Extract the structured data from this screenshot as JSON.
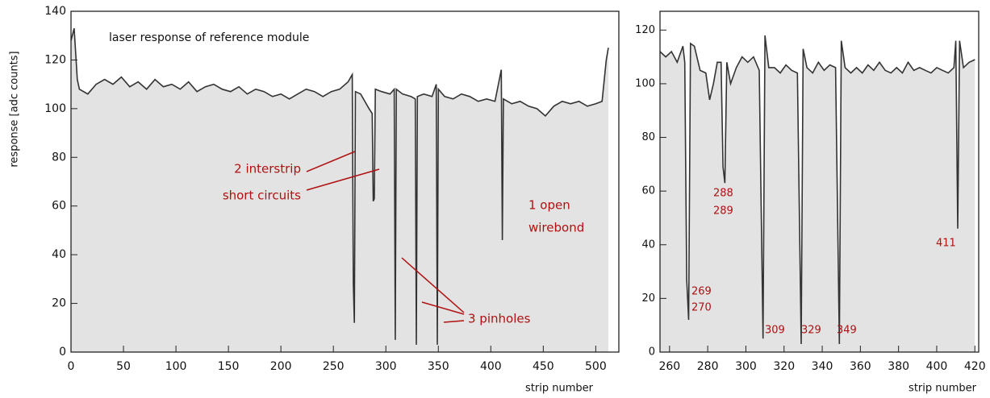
{
  "chart_data": [
    {
      "type": "line",
      "x_label": "strip number",
      "y_label": "response  [adc counts]",
      "xlim": [
        0,
        522
      ],
      "xticks": [
        0,
        50,
        100,
        150,
        200,
        250,
        300,
        350,
        400,
        450,
        500
      ],
      "ylim": [
        0,
        140
      ],
      "yticks": [
        0,
        20,
        40,
        60,
        80,
        100,
        120,
        140
      ],
      "annotations": [
        "laser response of reference module",
        "2 interstrip",
        "short circuits",
        "1 open",
        "wirebond",
        "3 pinholes"
      ],
      "series": [
        {
          "color": "#333333",
          "x": [
            0,
            3,
            6,
            8,
            16,
            24,
            32,
            40,
            48,
            56,
            64,
            72,
            80,
            88,
            96,
            104,
            112,
            120,
            128,
            136,
            144,
            152,
            160,
            168,
            176,
            184,
            192,
            200,
            208,
            216,
            224,
            232,
            240,
            248,
            256,
            264,
            268,
            269,
            270,
            271,
            276,
            284,
            287,
            288,
            289,
            290,
            296,
            304,
            308,
            309,
            310,
            316,
            324,
            328,
            329,
            330,
            336,
            344,
            348,
            349,
            350,
            356,
            364,
            372,
            380,
            388,
            396,
            404,
            410,
            411,
            412,
            420,
            428,
            436,
            444,
            452,
            460,
            468,
            476,
            484,
            492,
            500,
            506,
            510,
            512
          ],
          "values": [
            128,
            133,
            112,
            108,
            106,
            110,
            112,
            110,
            113,
            109,
            111,
            108,
            112,
            109,
            110,
            108,
            111,
            107,
            109,
            110,
            108,
            107,
            109,
            106,
            108,
            107,
            105,
            106,
            104,
            106,
            108,
            107,
            105,
            107,
            108,
            111,
            114,
            28,
            12,
            107,
            106,
            100,
            98,
            62,
            63,
            108,
            107,
            106,
            108,
            5,
            108,
            106,
            105,
            104,
            3,
            105,
            106,
            105,
            110,
            3,
            108,
            105,
            104,
            106,
            105,
            103,
            104,
            103,
            116,
            46,
            104,
            102,
            103,
            101,
            100,
            97,
            101,
            103,
            102,
            103,
            101,
            102,
            103,
            120,
            125
          ]
        }
      ]
    },
    {
      "type": "line",
      "x_label": "strip number",
      "xlim": [
        255,
        422
      ],
      "xticks": [
        260,
        280,
        300,
        320,
        340,
        360,
        380,
        400,
        420
      ],
      "ylim": [
        0,
        127
      ],
      "yticks": [
        0,
        20,
        40,
        60,
        80,
        100,
        120
      ],
      "annotations": [
        "288",
        "289",
        "269",
        "270",
        "309",
        "329",
        "349",
        "411"
      ],
      "series": [
        {
          "color": "#333333",
          "x": [
            255,
            258,
            261,
            264,
            267,
            268,
            269,
            270,
            271,
            273,
            276,
            279,
            281,
            283,
            285,
            287,
            288,
            289,
            290,
            292,
            295,
            298,
            301,
            304,
            307,
            309,
            310,
            312,
            315,
            318,
            321,
            324,
            327,
            329,
            330,
            332,
            335,
            338,
            341,
            344,
            347,
            349,
            350,
            352,
            355,
            358,
            361,
            364,
            367,
            370,
            373,
            376,
            379,
            382,
            385,
            388,
            391,
            394,
            397,
            400,
            403,
            406,
            409,
            410,
            411,
            412,
            414,
            417,
            420
          ],
          "values": [
            112,
            110,
            112,
            108,
            114,
            108,
            27,
            12,
            115,
            114,
            105,
            104,
            94,
            100,
            108,
            108,
            69,
            63,
            108,
            100,
            106,
            110,
            108,
            110,
            105,
            5,
            118,
            106,
            106,
            104,
            107,
            105,
            104,
            3,
            113,
            106,
            104,
            108,
            105,
            107,
            106,
            3,
            116,
            106,
            104,
            106,
            104,
            107,
            105,
            108,
            105,
            104,
            106,
            104,
            108,
            105,
            106,
            105,
            104,
            106,
            105,
            104,
            106,
            116,
            46,
            116,
            106,
            108,
            109
          ]
        }
      ]
    }
  ]
}
